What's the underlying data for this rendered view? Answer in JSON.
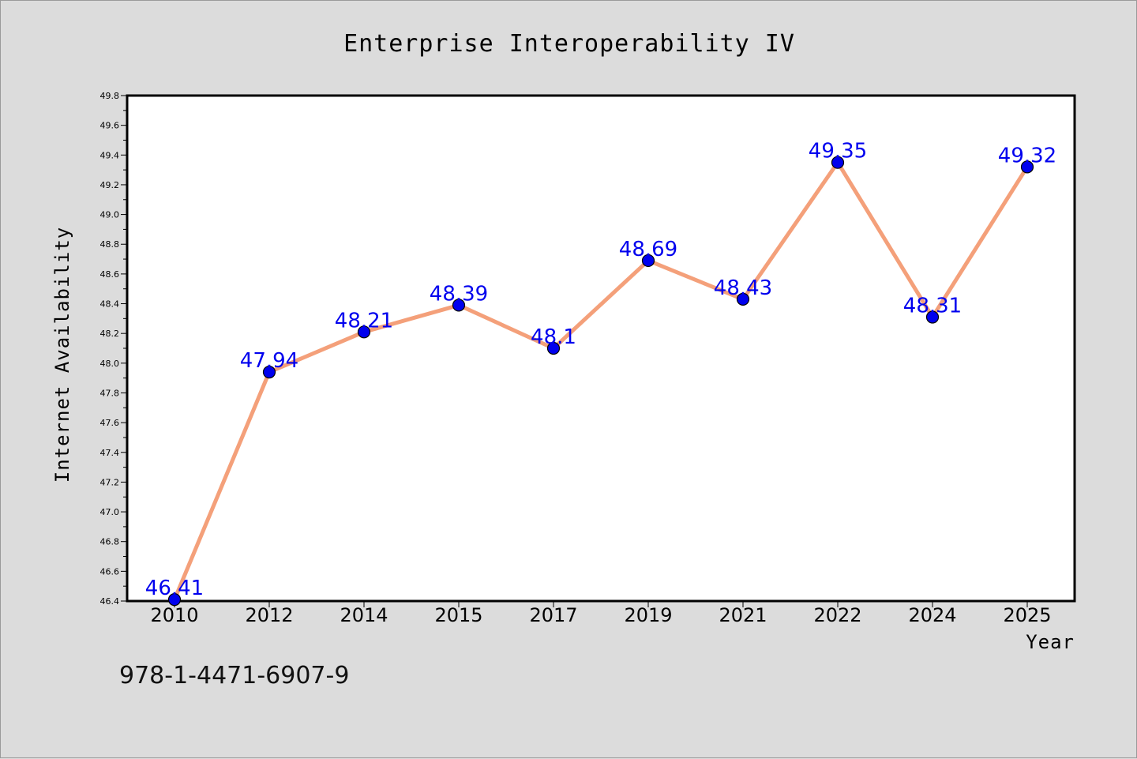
{
  "chart_data": {
    "type": "line",
    "title": "Enterprise Interoperability IV",
    "xlabel": "Year",
    "ylabel": "Internet Availability",
    "categories": [
      "2010",
      "2012",
      "2014",
      "2015",
      "2017",
      "2019",
      "2021",
      "2022",
      "2024",
      "2025"
    ],
    "series": [
      {
        "values": [
          46.41,
          47.94,
          48.21,
          48.39,
          48.1,
          48.69,
          48.43,
          49.35,
          48.31,
          49.32
        ],
        "data_labels": [
          "46.41",
          "47.94",
          "48.21",
          "48.39",
          "48.1",
          "48.69",
          "48.43",
          "49.35",
          "48.31",
          "49.32"
        ],
        "line_color": "#f4a07a",
        "marker_color": "#0000ee"
      }
    ],
    "ylim": [
      46.4,
      49.8
    ],
    "yticks": [
      "46.4",
      "46.6",
      "46.8",
      "47.0",
      "47.2",
      "47.4",
      "47.6",
      "47.8",
      "48.0",
      "48.2",
      "48.4",
      "48.6",
      "48.8",
      "49.0",
      "49.2",
      "49.4",
      "49.6",
      "49.8"
    ],
    "grid": false,
    "legend": "none"
  },
  "footer": {
    "isbn": "978-1-4471-6907-9"
  }
}
